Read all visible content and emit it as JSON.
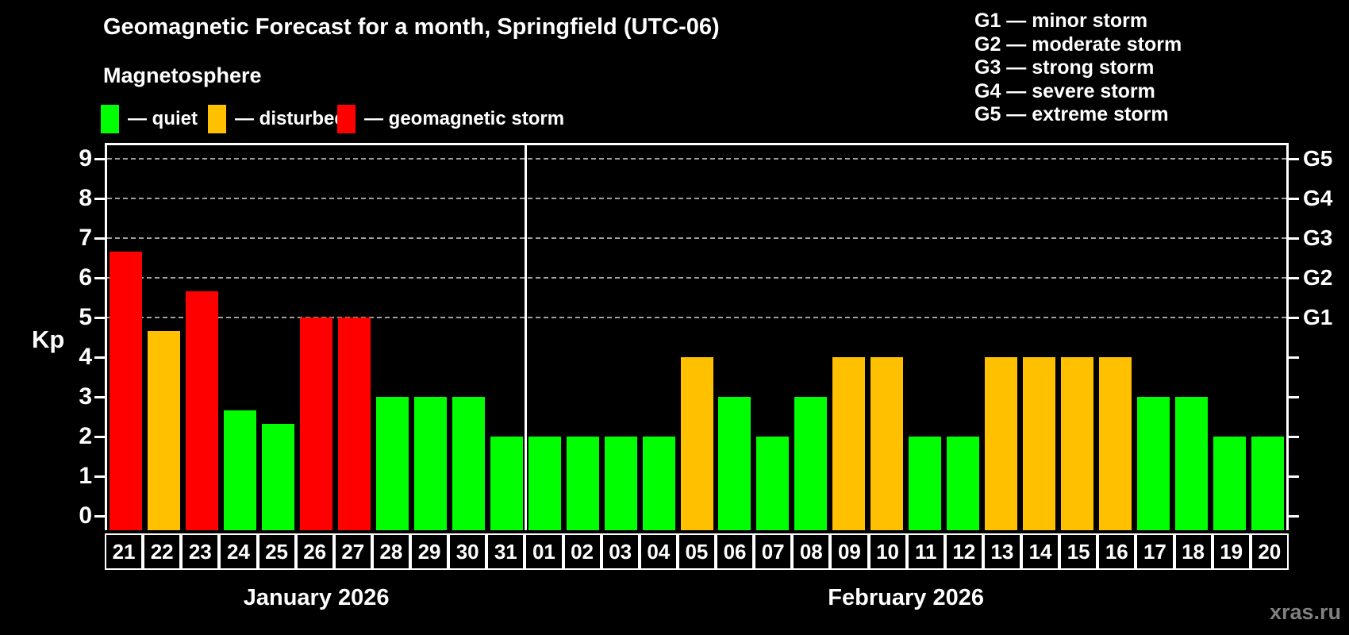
{
  "header": {
    "title": "Geomagnetic Forecast for a month, Springfield (UTC-06)",
    "subtitle": "Magnetosphere"
  },
  "legend": {
    "items": [
      {
        "key": "quiet",
        "label": "— quiet",
        "color": "#00ff00"
      },
      {
        "key": "disturbed",
        "label": "— disturbed",
        "color": "#ffc000"
      },
      {
        "key": "storm",
        "label": "— geomagnetic storm",
        "color": "#ff0000"
      }
    ]
  },
  "g_scale_legend": {
    "lines": [
      "G1 — minor storm",
      "G2 — moderate storm",
      "G3 — strong storm",
      "G4 — severe storm",
      "G5 — extreme storm"
    ]
  },
  "watermark": "xras.ru",
  "colors": {
    "quiet": "#00ff00",
    "disturbed": "#ffc000",
    "storm": "#ff0000",
    "background": "#000000",
    "axis": "#ffffff",
    "gridline": "#a0a0a0",
    "watermark": "#808080"
  },
  "chart_data": {
    "type": "bar",
    "title": "Geomagnetic Forecast for a month, Springfield (UTC-06)",
    "ylabel": "Kp",
    "ylim": [
      0,
      9
    ],
    "y_ticks": [
      0,
      1,
      2,
      3,
      4,
      5,
      6,
      7,
      8,
      9
    ],
    "gridlines_at_kp": [
      5,
      6,
      7,
      8,
      9
    ],
    "grid": "dashed-horizontal-at-storm-levels",
    "legend_position": "top",
    "right_axis_labels": [
      {
        "text": "G1",
        "kp": 5
      },
      {
        "text": "G2",
        "kp": 6
      },
      {
        "text": "G3",
        "kp": 7
      },
      {
        "text": "G4",
        "kp": 8
      },
      {
        "text": "G5",
        "kp": 9
      }
    ],
    "months": [
      {
        "label": "January 2026",
        "days": [
          {
            "day": "21",
            "kp": 6.67,
            "level": "storm"
          },
          {
            "day": "22",
            "kp": 4.67,
            "level": "disturbed"
          },
          {
            "day": "23",
            "kp": 5.67,
            "level": "storm"
          },
          {
            "day": "24",
            "kp": 2.67,
            "level": "quiet"
          },
          {
            "day": "25",
            "kp": 2.33,
            "level": "quiet"
          },
          {
            "day": "26",
            "kp": 5,
            "level": "storm"
          },
          {
            "day": "27",
            "kp": 5,
            "level": "storm"
          },
          {
            "day": "28",
            "kp": 3,
            "level": "quiet"
          },
          {
            "day": "29",
            "kp": 3,
            "level": "quiet"
          },
          {
            "day": "30",
            "kp": 3,
            "level": "quiet"
          },
          {
            "day": "31",
            "kp": 2,
            "level": "quiet"
          }
        ]
      },
      {
        "label": "February 2026",
        "days": [
          {
            "day": "01",
            "kp": 2,
            "level": "quiet"
          },
          {
            "day": "02",
            "kp": 2,
            "level": "quiet"
          },
          {
            "day": "03",
            "kp": 2,
            "level": "quiet"
          },
          {
            "day": "04",
            "kp": 2,
            "level": "quiet"
          },
          {
            "day": "05",
            "kp": 4,
            "level": "disturbed"
          },
          {
            "day": "06",
            "kp": 3,
            "level": "quiet"
          },
          {
            "day": "07",
            "kp": 2,
            "level": "quiet"
          },
          {
            "day": "08",
            "kp": 3,
            "level": "quiet"
          },
          {
            "day": "09",
            "kp": 4,
            "level": "disturbed"
          },
          {
            "day": "10",
            "kp": 4,
            "level": "disturbed"
          },
          {
            "day": "11",
            "kp": 2,
            "level": "quiet"
          },
          {
            "day": "12",
            "kp": 2,
            "level": "quiet"
          },
          {
            "day": "13",
            "kp": 4,
            "level": "disturbed"
          },
          {
            "day": "14",
            "kp": 4,
            "level": "disturbed"
          },
          {
            "day": "15",
            "kp": 4,
            "level": "disturbed"
          },
          {
            "day": "16",
            "kp": 4,
            "level": "disturbed"
          },
          {
            "day": "17",
            "kp": 3,
            "level": "quiet"
          },
          {
            "day": "18",
            "kp": 3,
            "level": "quiet"
          },
          {
            "day": "19",
            "kp": 2,
            "level": "quiet"
          },
          {
            "day": "20",
            "kp": 2,
            "level": "quiet"
          }
        ]
      }
    ]
  }
}
